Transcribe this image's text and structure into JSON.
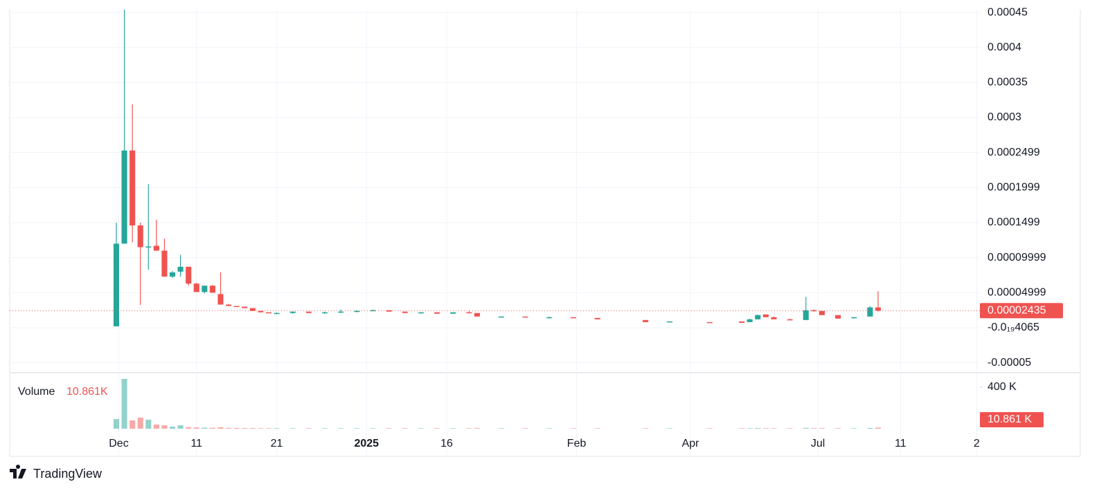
{
  "chart_data": {
    "type": "candlestick",
    "up_color": "#26a69a",
    "down_color": "#ef5350",
    "x": [
      0,
      1,
      2,
      3,
      4,
      5,
      6,
      7,
      8,
      9,
      10,
      11,
      12,
      13,
      14,
      15,
      16,
      17,
      18,
      19,
      20,
      22,
      24,
      26,
      28,
      30,
      32,
      34,
      36,
      38,
      40,
      42,
      44,
      45,
      48,
      51,
      54,
      57,
      60,
      66,
      69,
      74,
      78,
      79,
      80,
      81,
      82,
      84,
      86,
      87,
      88,
      90,
      92,
      94,
      95
    ],
    "open": [
      2e-06,
      0.00012,
      0.000253,
      0.000146,
      0.000115,
      0.000117,
      0.00011,
      7.3e-05,
      8e-05,
      8.7e-05,
      6.3e-05,
      5.1e-05,
      6e-05,
      4.8e-05,
      3.3e-05,
      3.1e-05,
      3e-05,
      2.8e-05,
      2.4e-05,
      2.2e-05,
      2.1e-05,
      2.1e-05,
      2.3e-05,
      2.1e-05,
      2.2e-05,
      2.3e-05,
      2.5e-05,
      2.5e-05,
      2.3e-05,
      2.1e-05,
      2.2e-05,
      2e-05,
      2.2e-05,
      2.1e-05,
      1.6e-05,
      1.6e-05,
      1.5e-05,
      1.5e-05,
      1.4e-05,
      1.1e-05,
      8e-06,
      8e-06,
      9e-06,
      8e-06,
      1.2e-05,
      1.9e-05,
      1.5e-05,
      1.2e-05,
      1.1e-05,
      2.5e-05,
      2.4e-05,
      1.8e-05,
      1.4e-05,
      1.6e-05,
      2.9e-05
    ],
    "high": [
      0.00015,
      0.000454,
      0.000319,
      0.00015,
      0.000205,
      0.000154,
      0.000127,
      8.1e-05,
      0.000104,
      8.7e-05,
      6.4e-05,
      6e-05,
      6.1e-05,
      7.9e-05,
      3.4e-05,
      3.1e-05,
      3e-05,
      2.8e-05,
      2.4e-05,
      2.2e-05,
      2.2e-05,
      2.3e-05,
      2.3e-05,
      2.3e-05,
      2.6e-05,
      2.5e-05,
      2.6e-05,
      2.5e-05,
      2.3e-05,
      2.2e-05,
      2.2e-05,
      2.2e-05,
      2.4e-05,
      2.1e-05,
      1.6e-05,
      1.6e-05,
      1.6e-05,
      1.5e-05,
      1.4e-05,
      1.1e-05,
      9e-06,
      8e-06,
      9e-06,
      1.3e-05,
      1.9e-05,
      1.9e-05,
      1.6e-05,
      1.3e-05,
      4.4e-05,
      2.6e-05,
      2.4e-05,
      1.8e-05,
      1.5e-05,
      3.1e-05,
      5.2e-05
    ],
    "low": [
      2e-06,
      0.00012,
      0.000122,
      3.26e-05,
      8.3e-05,
      0.00011,
      7.3e-05,
      7.1e-05,
      7.3e-05,
      6e-05,
      5.1e-05,
      4.9e-05,
      5e-05,
      3.3e-05,
      3.1e-05,
      3e-05,
      2.8e-05,
      2.4e-05,
      2.2e-05,
      2.1e-05,
      2e-05,
      2e-05,
      2.1e-05,
      2e-05,
      2.1e-05,
      2.2e-05,
      2.4e-05,
      2.3e-05,
      2.1e-05,
      2e-05,
      2e-05,
      2e-05,
      2.1e-05,
      1.6e-05,
      1.5e-05,
      1.5e-05,
      1.5e-05,
      1.4e-05,
      1.2e-05,
      8e-06,
      8e-06,
      7e-06,
      7e-06,
      8e-06,
      1.2e-05,
      1.5e-05,
      1.2e-05,
      1.1e-05,
      1.1e-05,
      2.3e-05,
      1.8e-05,
      1.3e-05,
      1.3e-05,
      1.6e-05,
      2.3e-05
    ],
    "close": [
      0.00012,
      0.000253,
      0.000146,
      0.000115,
      0.000116,
      0.00011,
      7.3e-05,
      7.9e-05,
      8.7e-05,
      6.3e-05,
      5.1e-05,
      6e-05,
      5e-05,
      3.3e-05,
      3.1e-05,
      3e-05,
      2.8e-05,
      2.4e-05,
      2.2e-05,
      2.1e-05,
      2.1e-05,
      2.3e-05,
      2.1e-05,
      2.2e-05,
      2.3e-05,
      2.4e-05,
      2.5e-05,
      2.3e-05,
      2.1e-05,
      2.2e-05,
      2e-05,
      2.2e-05,
      2.1e-05,
      1.6e-05,
      1.6e-05,
      1.5e-05,
      1.5e-05,
      1.4e-05,
      1.2e-05,
      8e-06,
      9e-06,
      7e-06,
      7e-06,
      1.2e-05,
      1.8e-05,
      1.5e-05,
      1.2e-05,
      1.1e-05,
      2.5e-05,
      2.4e-05,
      1.8e-05,
      1.3e-05,
      1.5e-05,
      2.9e-05,
      2.435e-05
    ],
    "xlim": [
      -13.3,
      107.7
    ],
    "xticks": [
      {
        "value": 0.3,
        "label": "Dec"
      },
      {
        "value": 10,
        "label": "11"
      },
      {
        "value": 20,
        "label": "21"
      },
      {
        "value": 31.2,
        "label": "2025"
      },
      {
        "value": 41.2,
        "label": "16"
      },
      {
        "value": 57.4,
        "label": "Feb"
      },
      {
        "value": 71.6,
        "label": "Apr"
      },
      {
        "value": 87.5,
        "label": "Jul"
      },
      {
        "value": 97.8,
        "label": "11"
      },
      {
        "value": 107.3,
        "label": "2"
      }
    ],
    "ylim": [
      -6.32e-05,
      0.000454
    ],
    "yticks": [
      0.00045,
      0.0004,
      0.00035,
      0.0003,
      {
        "value": 0.00025,
        "label": "0.0002499"
      },
      {
        "value": 0.0002,
        "label": "0.0001999"
      },
      {
        "value": 0.00015,
        "label": "0.0001499"
      },
      {
        "value": 0.0001,
        "label": "0.00009999"
      },
      {
        "value": 5e-05,
        "label": "0.00004999"
      },
      {
        "value": 0,
        "label": "-0.0₁₉4065"
      },
      -5e-05
    ],
    "last_price": {
      "value": 2.435e-05,
      "label": "0.00002435"
    },
    "volume": {
      "name": "Volume",
      "last_label": "10.861K",
      "last_axis_label": "10.861 K",
      "ylim": [
        0,
        533000
      ],
      "yticks": [
        {
          "value": 400000,
          "label": "400 K"
        }
      ],
      "values": [
        93000,
        480000,
        80000,
        107000,
        87000,
        40000,
        33000,
        20000,
        33000,
        15000,
        12000,
        10000,
        9000,
        14000,
        8000,
        7000,
        6000,
        6000,
        5000,
        5000,
        5000,
        5000,
        5000,
        5000,
        5000,
        5000,
        5000,
        5000,
        5000,
        5000,
        5000,
        5000,
        5000,
        6000,
        5000,
        5000,
        5000,
        5000,
        5000,
        5000,
        5000,
        5000,
        5000,
        5000,
        6000,
        5000,
        5000,
        5000,
        8000,
        6000,
        6000,
        5000,
        5000,
        7000,
        10861
      ]
    },
    "brand": "TradingView"
  }
}
